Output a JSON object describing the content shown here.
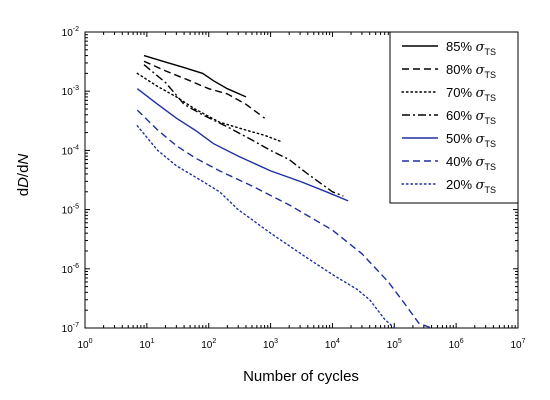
{
  "chart_data": {
    "type": "line",
    "title": "",
    "xlabel": "Number of cycles",
    "ylabel": "dD/dN",
    "xscale": "log",
    "yscale": "log",
    "xlim": [
      1,
      10000000
    ],
    "ylim": [
      1e-07,
      0.01
    ],
    "x_ticks": [
      {
        "value": 1,
        "base": "10",
        "exp": "0"
      },
      {
        "value": 10,
        "base": "10",
        "exp": "1"
      },
      {
        "value": 100,
        "base": "10",
        "exp": "2"
      },
      {
        "value": 1000,
        "base": "10",
        "exp": "3"
      },
      {
        "value": 10000,
        "base": "10",
        "exp": "4"
      },
      {
        "value": 100000,
        "base": "10",
        "exp": "5"
      },
      {
        "value": 1000000,
        "base": "10",
        "exp": "6"
      },
      {
        "value": 10000000,
        "base": "10",
        "exp": "7"
      }
    ],
    "y_ticks": [
      {
        "value": 1e-07,
        "base": "10",
        "exp": "-7"
      },
      {
        "value": 1e-06,
        "base": "10",
        "exp": "-6"
      },
      {
        "value": 1e-05,
        "base": "10",
        "exp": "-5"
      },
      {
        "value": 0.0001,
        "base": "10",
        "exp": "-4"
      },
      {
        "value": 0.001,
        "base": "10",
        "exp": "-3"
      },
      {
        "value": 0.01,
        "base": "10",
        "exp": "-2"
      }
    ],
    "grid": false,
    "legend_position": "top-right",
    "series": [
      {
        "name": "85% σTS",
        "label_pct": "85%",
        "label_sym": "σ",
        "label_sub": "TS",
        "color": "#000000",
        "dash": "solid",
        "points": [
          [
            9,
            0.004
          ],
          [
            20,
            0.0031
          ],
          [
            40,
            0.0025
          ],
          [
            80,
            0.002
          ],
          [
            120,
            0.0015
          ],
          [
            200,
            0.0011
          ],
          [
            400,
            0.0008
          ]
        ]
      },
      {
        "name": "80% σTS",
        "label_pct": "80%",
        "label_sym": "σ",
        "label_sub": "TS",
        "color": "#000000",
        "dash": "dash",
        "points": [
          [
            9,
            0.0032
          ],
          [
            20,
            0.0022
          ],
          [
            50,
            0.0015
          ],
          [
            100,
            0.0011
          ],
          [
            200,
            0.0009
          ],
          [
            400,
            0.0006
          ],
          [
            800,
            0.00035
          ]
        ]
      },
      {
        "name": "70% σTS",
        "label_pct": "70%",
        "label_sym": "σ",
        "label_sub": "TS",
        "color": "#000000",
        "dash": "dot",
        "points": [
          [
            7,
            0.002
          ],
          [
            15,
            0.0012
          ],
          [
            30,
            0.0008
          ],
          [
            60,
            0.0005
          ],
          [
            150,
            0.0003
          ],
          [
            400,
            0.00022
          ],
          [
            800,
            0.00018
          ],
          [
            1500,
            0.00014
          ]
        ]
      },
      {
        "name": "60% σTS",
        "label_pct": "60%",
        "label_sym": "σ",
        "label_sub": "TS",
        "color": "#000000",
        "dash": "dashdot",
        "points": [
          [
            9,
            0.0028
          ],
          [
            20,
            0.0014
          ],
          [
            40,
            0.0006
          ],
          [
            80,
            0.0004
          ],
          [
            200,
            0.00025
          ],
          [
            500,
            0.00015
          ],
          [
            1000,
            0.0001
          ],
          [
            2000,
            7e-05
          ],
          [
            4000,
            4e-05
          ],
          [
            10000,
            2e-05
          ],
          [
            15000,
            1.7e-05
          ]
        ]
      },
      {
        "name": "50% σTS",
        "label_pct": "50%",
        "label_sym": "σ",
        "label_sub": "TS",
        "color": "#1f2fa0",
        "dash": "solid",
        "points": [
          [
            7,
            0.0011
          ],
          [
            15,
            0.0006
          ],
          [
            30,
            0.00035
          ],
          [
            60,
            0.00022
          ],
          [
            120,
            0.00013
          ],
          [
            300,
            8e-05
          ],
          [
            1000,
            4.5e-05
          ],
          [
            3000,
            3e-05
          ],
          [
            8000,
            2e-05
          ],
          [
            18000,
            1.4e-05
          ]
        ]
      },
      {
        "name": "40% σTS",
        "label_pct": "40%",
        "label_sym": "σ",
        "label_sub": "TS",
        "color": "#1f2fa0",
        "dash": "dash",
        "points": [
          [
            7,
            0.00048
          ],
          [
            15,
            0.00022
          ],
          [
            30,
            0.00012
          ],
          [
            60,
            7.5e-05
          ],
          [
            150,
            4.5e-05
          ],
          [
            500,
            2.5e-05
          ],
          [
            2000,
            1.2e-05
          ],
          [
            10000,
            4.5e-06
          ],
          [
            30000,
            1.8e-06
          ],
          [
            80000,
            6e-07
          ],
          [
            150000,
            2.5e-07
          ],
          [
            250000,
            1.2e-07
          ],
          [
            400000,
            1e-07
          ]
        ]
      },
      {
        "name": "20% σTS",
        "label_pct": "20%",
        "label_sym": "σ",
        "label_sub": "TS",
        "color": "#1f2fa0",
        "dash": "dot",
        "points": [
          [
            7,
            0.00026
          ],
          [
            15,
            0.0001
          ],
          [
            30,
            5.5e-05
          ],
          [
            80,
            3e-05
          ],
          [
            150,
            2e-05
          ],
          [
            300,
            1e-05
          ],
          [
            1000,
            4e-06
          ],
          [
            4000,
            1.5e-06
          ],
          [
            10000,
            8e-07
          ],
          [
            25000,
            4.5e-07
          ],
          [
            40000,
            3e-07
          ],
          [
            70000,
            1.4e-07
          ],
          [
            100000,
            1e-07
          ]
        ]
      }
    ]
  }
}
